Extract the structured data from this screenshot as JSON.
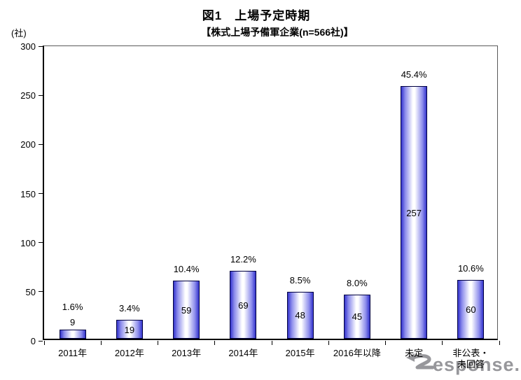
{
  "header": {
    "title": "図1　上場予定時期",
    "subtitle": "【株式上場予備軍企業(n=566社)】"
  },
  "y_axis": {
    "unit": "(社)"
  },
  "watermark": {
    "text": "Response.",
    "display_rest": "esponse."
  },
  "colors": {
    "bar_edge": "#3434cd",
    "bar_mid": "#8d8dec",
    "bar_center": "#ffffff",
    "bar_border": "#000040",
    "axis": "#000000",
    "text": "#000000",
    "watermark": "#97979b"
  },
  "chart_data": {
    "type": "bar",
    "title": "図1 上場予定時期",
    "subtitle": "【株式上場予備軍企業(n=566社)】",
    "xlabel": "",
    "ylabel": "(社)",
    "ylim": [
      0,
      300
    ],
    "yticks": [
      0,
      50,
      100,
      150,
      200,
      250,
      300
    ],
    "grid": false,
    "legend": false,
    "categories": [
      "2011年",
      "2012年",
      "2013年",
      "2014年",
      "2015年",
      "2016年以降",
      "未定",
      "非公表・未回答"
    ],
    "categories_display": [
      "2011年",
      "2012年",
      "2013年",
      "2014年",
      "2015年",
      "2016年以降",
      "未定",
      "非公表・\n未回答"
    ],
    "values": [
      9,
      19,
      59,
      69,
      48,
      45,
      257,
      60
    ],
    "percent_labels": [
      "1.6%",
      "3.4%",
      "10.4%",
      "12.2%",
      "8.5%",
      "8.0%",
      "45.4%",
      "10.6%"
    ]
  }
}
